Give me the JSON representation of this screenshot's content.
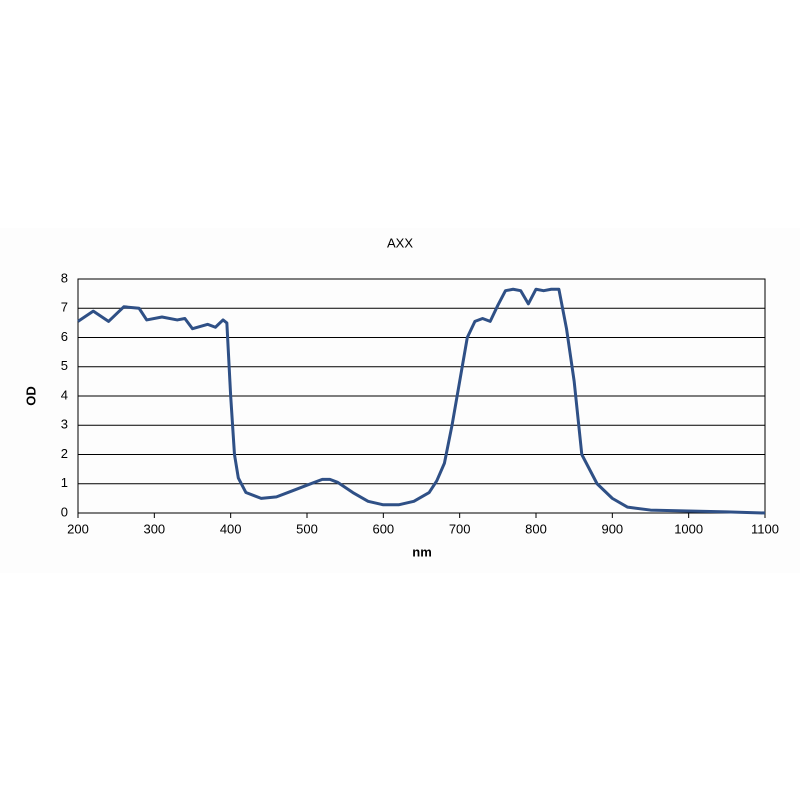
{
  "chart_data": {
    "type": "line",
    "title": "AXX",
    "x_label": "nm",
    "y_label": "OD",
    "x": [
      200,
      220,
      240,
      260,
      280,
      290,
      310,
      330,
      340,
      350,
      370,
      380,
      390,
      395,
      400,
      405,
      410,
      420,
      440,
      460,
      480,
      500,
      520,
      530,
      540,
      560,
      580,
      600,
      620,
      640,
      660,
      670,
      680,
      690,
      700,
      710,
      720,
      730,
      740,
      750,
      760,
      770,
      780,
      790,
      800,
      810,
      820,
      830,
      840,
      850,
      860,
      870,
      880,
      900,
      920,
      950,
      1000,
      1050,
      1100
    ],
    "values": [
      6.55,
      6.9,
      6.55,
      7.05,
      7.0,
      6.6,
      6.7,
      6.6,
      6.65,
      6.3,
      6.45,
      6.35,
      6.6,
      6.5,
      4.0,
      2.0,
      1.2,
      0.7,
      0.5,
      0.55,
      0.75,
      0.95,
      1.15,
      1.15,
      1.05,
      0.7,
      0.4,
      0.28,
      0.28,
      0.4,
      0.7,
      1.1,
      1.7,
      3.0,
      4.5,
      6.0,
      6.55,
      6.65,
      6.55,
      7.1,
      7.6,
      7.65,
      7.6,
      7.15,
      7.65,
      7.6,
      7.65,
      7.65,
      6.3,
      4.5,
      2.0,
      1.5,
      1.0,
      0.5,
      0.2,
      0.1,
      0.07,
      0.04,
      0.0
    ],
    "color": "#2f5086",
    "xlim": [
      200,
      1100
    ],
    "xticks": [
      200,
      300,
      400,
      500,
      600,
      700,
      800,
      900,
      1000,
      1100
    ],
    "ylim": [
      0,
      8
    ],
    "yticks": [
      0,
      1,
      2,
      3,
      4,
      5,
      6,
      7,
      8
    ],
    "grid": true
  }
}
